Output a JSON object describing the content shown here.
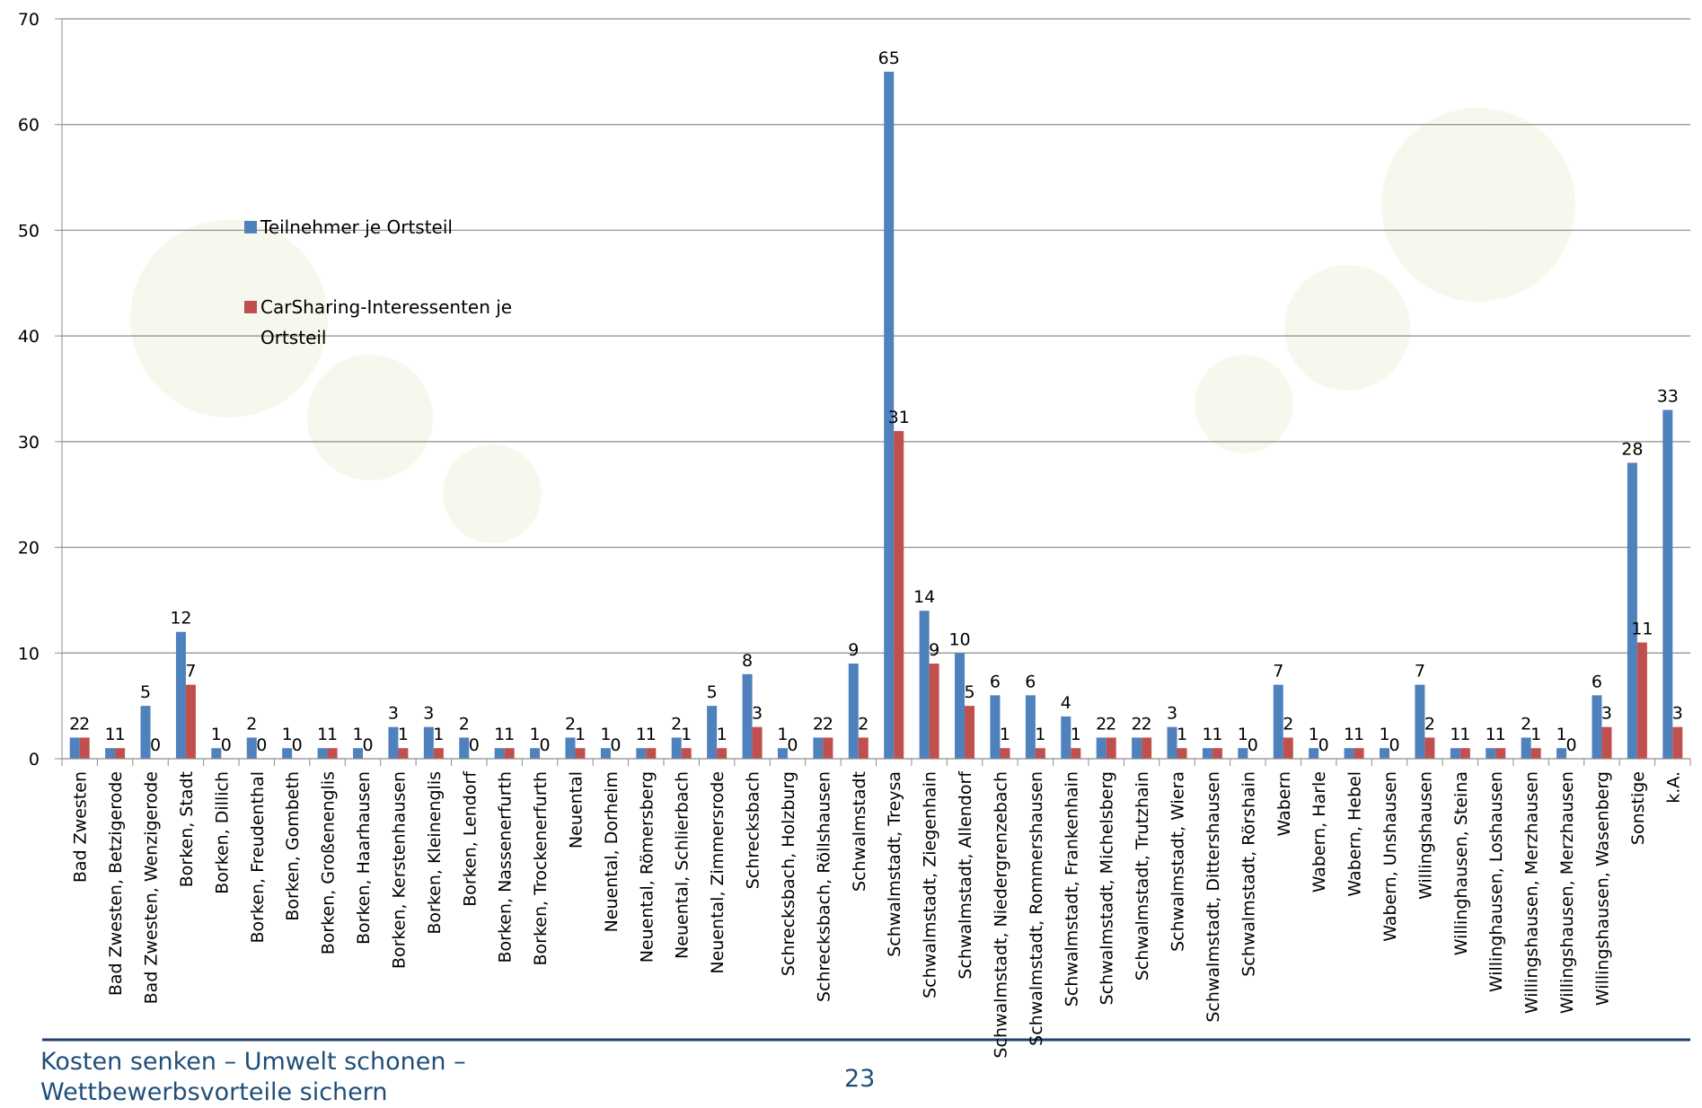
{
  "chart_data": {
    "type": "bar",
    "categories": [
      "Bad Zwesten",
      "Bad Zwesten, Betzigerode",
      "Bad Zwesten, Wenzigerode",
      "Borken, Stadt",
      "Borken, Dillich",
      "Borken, Freudenthal",
      "Borken, Gombeth",
      "Borken, Großenenglis",
      "Borken, Haarhausen",
      "Borken, Kerstenhausen",
      "Borken, Kleinenglis",
      "Borken, Lendorf",
      "Borken, Nassenerfurth",
      "Borken, Trockenerfurth",
      "Neuental",
      "Neuental, Dorheim",
      "Neuental, Römersberg",
      "Neuental, Schlierbach",
      "Neuental, Zimmersrode",
      "Schrecksbach",
      "Schrecksbach, Holzburg",
      "Schrecksbach, Röllshausen",
      "Schwalmstadt",
      "Schwalmstadt, Treysa",
      "Schwalmstadt, Ziegenhain",
      "Schwalmstadt, Allendorf",
      "Schwalmstadt, Niedergrenzebach",
      "Schwalmstadt, Rommershausen",
      "Schwalmstadt, Frankenhain",
      "Schwalmstadt, Michelsberg",
      "Schwalmstadt, Trutzhain",
      "Schwalmstadt, Wiera",
      "Schwalmstadt, Dittershausen",
      "Schwalmstadt, Rörshain",
      "Wabern",
      "Wabern, Harle",
      "Wabern, Hebel",
      "Wabern, Unshausen",
      "Willingshausen",
      "Willinghausen, Steina",
      "Willinghausen, Loshausen",
      "Willingshausen, Merzhausen",
      "Willingshausen, Merzhausen",
      "Willingshausen, Wasenberg",
      "Sonstige",
      "k.A."
    ],
    "series": [
      {
        "name": "Teilnehmer je Ortsteil",
        "color": "#4f81bd",
        "values": [
          2,
          1,
          5,
          12,
          1,
          2,
          1,
          1,
          1,
          3,
          3,
          2,
          1,
          1,
          2,
          1,
          1,
          2,
          5,
          8,
          1,
          2,
          9,
          65,
          14,
          10,
          6,
          6,
          4,
          2,
          2,
          3,
          1,
          1,
          7,
          1,
          1,
          1,
          7,
          1,
          1,
          2,
          1,
          6,
          28,
          33
        ]
      },
      {
        "name": "CarSharing-Interessenten je Ortsteil",
        "color": "#c0504d",
        "values": [
          2,
          1,
          0,
          7,
          0,
          0,
          0,
          1,
          0,
          1,
          1,
          0,
          1,
          0,
          1,
          0,
          1,
          1,
          1,
          3,
          0,
          2,
          2,
          31,
          9,
          5,
          1,
          1,
          1,
          2,
          2,
          1,
          1,
          0,
          2,
          0,
          1,
          0,
          2,
          1,
          1,
          1,
          0,
          3,
          11,
          3
        ]
      }
    ],
    "ylim": [
      0,
      70
    ],
    "yticks": [
      0,
      10,
      20,
      30,
      40,
      50,
      60,
      70
    ],
    "grid": true
  },
  "footer": {
    "text": "Kosten senken – Umwelt schonen – Wettbewerbsvorteile sichern",
    "page": "23"
  }
}
